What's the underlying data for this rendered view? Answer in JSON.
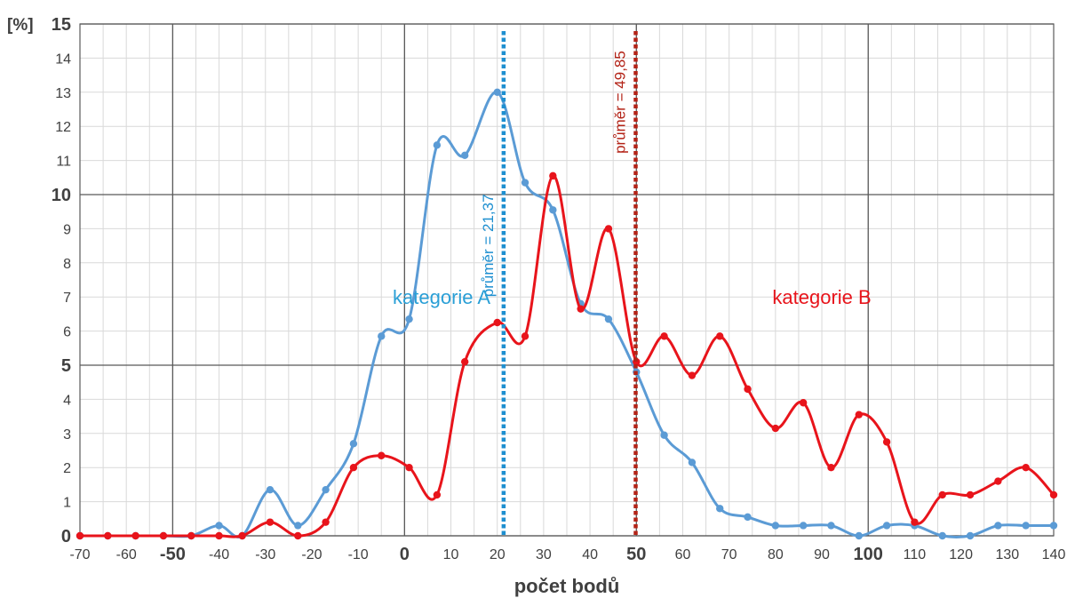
{
  "chart_data": {
    "type": "line",
    "title": "",
    "xlabel": "počet bodů",
    "ylabel": "[%]",
    "xlim": [
      -70,
      140
    ],
    "ylim": [
      0,
      15
    ],
    "grid": true,
    "x_ticks": [
      -70,
      -60,
      -50,
      -40,
      -30,
      -20,
      -10,
      0,
      10,
      20,
      30,
      40,
      50,
      60,
      70,
      80,
      90,
      100,
      110,
      120,
      130,
      140
    ],
    "x_ticks_bold": [
      -50,
      0,
      50,
      100
    ],
    "y_ticks": [
      0,
      1,
      2,
      3,
      4,
      5,
      6,
      7,
      8,
      9,
      10,
      11,
      12,
      13,
      14,
      15
    ],
    "y_ticks_bold": [
      0,
      5,
      10,
      15
    ],
    "series": [
      {
        "name": "kategorie A",
        "color": "#5b9bd5",
        "x": [
          -70,
          -64,
          -58,
          -52,
          -46,
          -40,
          -35,
          -29,
          -23,
          -17,
          -11,
          -5,
          1,
          7,
          13,
          20,
          26,
          32,
          38,
          44,
          50,
          56,
          62,
          68,
          74,
          80,
          86,
          92,
          98,
          104,
          110,
          116,
          122,
          128,
          134,
          140
        ],
        "y": [
          0,
          0,
          0,
          0,
          0,
          0.3,
          0,
          1.35,
          0.3,
          1.35,
          2.7,
          5.85,
          6.35,
          11.45,
          11.15,
          13,
          10.35,
          9.55,
          6.8,
          6.35,
          4.8,
          2.95,
          2.15,
          0.8,
          0.55,
          0.3,
          0.3,
          0.3,
          0,
          0.3,
          0.3,
          0,
          0,
          0.3,
          0.3,
          0.3
        ]
      },
      {
        "name": "kategorie B",
        "color": "#e8141b",
        "x": [
          -70,
          -64,
          -58,
          -52,
          -46,
          -40,
          -35,
          -29,
          -23,
          -17,
          -11,
          -5,
          1,
          7,
          13,
          20,
          26,
          32,
          38,
          44,
          50,
          56,
          62,
          68,
          74,
          80,
          86,
          92,
          98,
          104,
          110,
          116,
          122,
          128,
          134,
          140
        ],
        "y": [
          0,
          0,
          0,
          0,
          0,
          0,
          0,
          0.4,
          0,
          0.4,
          2,
          2.35,
          2,
          1.2,
          5.1,
          6.25,
          5.85,
          10.55,
          6.65,
          9,
          5.1,
          5.85,
          4.7,
          5.85,
          4.3,
          3.15,
          3.9,
          2,
          3.55,
          2.75,
          0.4,
          1.2,
          1.2,
          1.6,
          2,
          1.2
        ]
      }
    ],
    "series_labels": [
      {
        "text": "kategorie A",
        "color": "#2a9fd6",
        "x": 8,
        "y": 6.8
      },
      {
        "text": "kategorie B",
        "color": "#e8141b",
        "x": 90,
        "y": 6.8
      }
    ],
    "reference_lines": [
      {
        "x": 21.37,
        "label": "průměr = 21,37",
        "color": "#1e8fd0",
        "label_y": 7
      },
      {
        "x": 49.85,
        "label": "průměr = 49,85",
        "color": "#b32317",
        "label_y": 11.2
      }
    ]
  }
}
